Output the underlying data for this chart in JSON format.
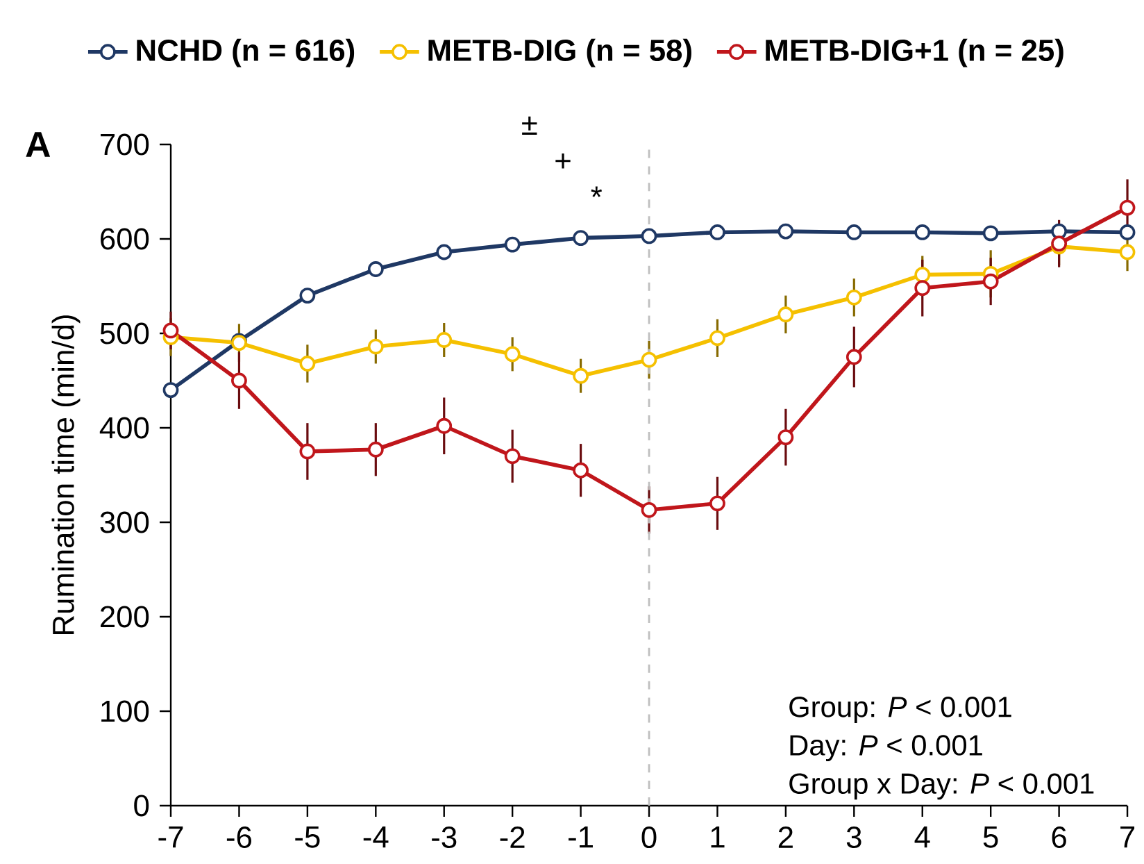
{
  "chart_data": {
    "type": "line",
    "ylabel": "Rumination time (min/d)",
    "x": [
      -7,
      -6,
      -5,
      -4,
      -3,
      -2,
      -1,
      0,
      1,
      2,
      3,
      4,
      5,
      6,
      7
    ],
    "xlim": [
      -7,
      7
    ],
    "xticks": [
      -7,
      -6,
      -5,
      -4,
      -3,
      -2,
      -1,
      0,
      1,
      2,
      3,
      4,
      5,
      6,
      7
    ],
    "ylim": [
      0,
      700
    ],
    "yticks": [
      0,
      100,
      200,
      300,
      400,
      500,
      600,
      700
    ],
    "series": [
      {
        "name": "NCHD (n = 616)",
        "color": "#1f3864",
        "values": [
          440,
          492,
          540,
          568,
          586,
          594,
          601,
          603,
          607,
          608,
          607,
          607,
          606,
          608,
          607
        ]
      },
      {
        "name": "METB-DIG (n = 58)",
        "color": "#f5c000",
        "values": [
          496,
          490,
          468,
          486,
          493,
          478,
          455,
          472,
          495,
          520,
          538,
          562,
          563,
          592,
          586
        ],
        "errors": [
          20,
          20,
          20,
          18,
          18,
          18,
          18,
          20,
          20,
          20,
          20,
          20,
          25,
          20,
          20
        ]
      },
      {
        "name": "METB-DIG+1 (n = 25)",
        "color": "#c0161b",
        "values": [
          503,
          450,
          375,
          377,
          402,
          370,
          355,
          313,
          320,
          390,
          475,
          548,
          555,
          595,
          633
        ],
        "errors": [
          20,
          30,
          30,
          28,
          30,
          28,
          28,
          25,
          28,
          30,
          32,
          30,
          25,
          25,
          30
        ]
      }
    ],
    "ref_lines": [
      {
        "axis": "x",
        "value": 0,
        "color": "#bfbfbf",
        "line_style": "dashed"
      }
    ],
    "annotations": [
      "A",
      "±",
      "+",
      "*",
      "Group: *P* < 0.001",
      "Day: *P* < 0.001",
      "Group x Day: *P* < 0.001"
    ],
    "legend": "top",
    "marker": "circle",
    "line_style": "solid",
    "grid": false
  }
}
